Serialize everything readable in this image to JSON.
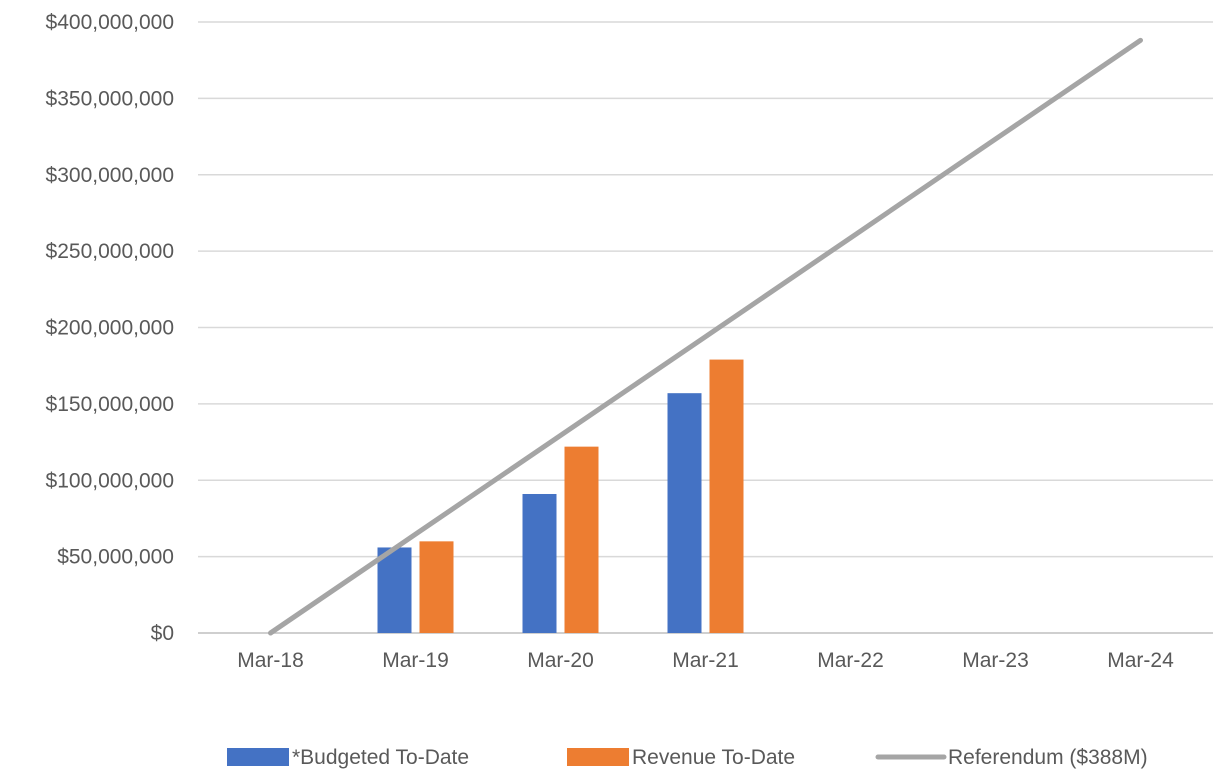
{
  "chart_data": {
    "type": "bar",
    "categories": [
      "Mar-18",
      "Mar-19",
      "Mar-20",
      "Mar-21",
      "Mar-22",
      "Mar-23",
      "Mar-24"
    ],
    "series": [
      {
        "name": "*Budgeted To-Date",
        "type": "bar",
        "color": "#4472C4",
        "values": [
          null,
          56000000,
          91000000,
          157000000,
          null,
          null,
          null
        ]
      },
      {
        "name": "Revenue To-Date",
        "type": "bar",
        "color": "#ED7D31",
        "values": [
          null,
          60000000,
          122000000,
          179000000,
          null,
          null,
          null
        ]
      },
      {
        "name": "Referendum ($388M)",
        "type": "line",
        "color": "#A5A5A5",
        "values": [
          0,
          64667000,
          129333000,
          194000000,
          258667000,
          323333000,
          388000000
        ]
      }
    ],
    "y_ticks": [
      "$0",
      "$50,000,000",
      "$100,000,000",
      "$150,000,000",
      "$200,000,000",
      "$250,000,000",
      "$300,000,000",
      "$350,000,000",
      "$400,000,000"
    ],
    "y_tick_values": [
      0,
      50000000,
      100000000,
      150000000,
      200000000,
      250000000,
      300000000,
      350000000,
      400000000
    ],
    "ylim": [
      0,
      400000000
    ],
    "title": "",
    "xlabel": "",
    "ylabel": "",
    "grid": true,
    "legend_position": "bottom"
  }
}
